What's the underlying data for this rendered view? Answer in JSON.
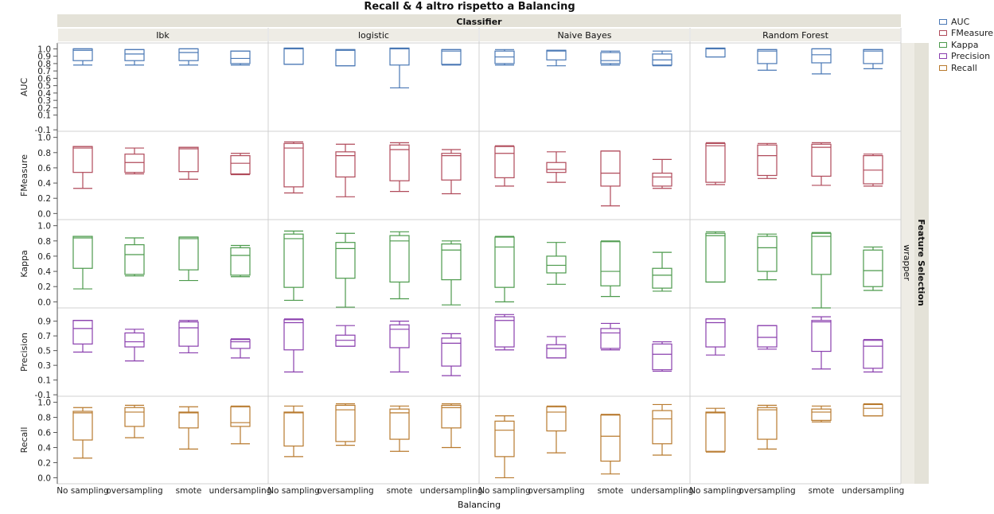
{
  "chart_data": {
    "type": "box",
    "title": "Recall & 4 altro rispetto a Balancing",
    "column_group_label": "Classifier",
    "row_group_label": "Feature Selection",
    "row_group_value": "wrapper",
    "xlabel": "Balancing",
    "classifiers": [
      "Ibk",
      "logistic",
      "Naive Bayes",
      "Random Forest"
    ],
    "categories": [
      "No sampling",
      "oversampling",
      "smote",
      "undersampling"
    ],
    "metrics": [
      {
        "name": "AUC",
        "color": "#4a78b5",
        "ticks": [
          "1.0",
          "0.9",
          "0.8",
          "0.7",
          "0.6",
          "0.5",
          "0.4",
          "0.3",
          "0.2",
          "0.1",
          "-0.1"
        ],
        "tick_values": [
          1.0,
          0.9,
          0.8,
          0.7,
          0.6,
          0.5,
          0.4,
          0.3,
          0.2,
          0.1,
          -0.1
        ],
        "ylim": [
          -0.12,
          1.08
        ]
      },
      {
        "name": "FMeasure",
        "color": "#b04a5a",
        "ticks": [
          "1.0",
          "0.8",
          "0.6",
          "0.4",
          "0.2",
          "0.0"
        ],
        "tick_values": [
          1.0,
          0.8,
          0.6,
          0.4,
          0.2,
          0.0
        ],
        "ylim": [
          -0.08,
          1.08
        ]
      },
      {
        "name": "Kappa",
        "color": "#4c9a4c",
        "ticks": [
          "1.0",
          "0.8",
          "0.6",
          "0.4",
          "0.2",
          "0.0"
        ],
        "tick_values": [
          1.0,
          0.8,
          0.6,
          0.4,
          0.2,
          0.0
        ],
        "ylim": [
          -0.08,
          1.08
        ]
      },
      {
        "name": "Precision",
        "color": "#8a3fae",
        "ticks": [
          "0.9",
          "0.7",
          "0.5",
          "0.3",
          "0.1",
          "-0.1"
        ],
        "tick_values": [
          0.9,
          0.7,
          0.5,
          0.3,
          0.1,
          -0.1
        ],
        "ylim": [
          -0.12,
          1.08
        ]
      },
      {
        "name": "Recall",
        "color": "#b87a2e",
        "ticks": [
          "1.0",
          "0.8",
          "0.6",
          "0.4",
          "0.2",
          "0.0"
        ],
        "tick_values": [
          1.0,
          0.8,
          0.6,
          0.4,
          0.2,
          0.0
        ],
        "ylim": [
          -0.08,
          1.08
        ]
      }
    ],
    "boxes": {
      "AUC": [
        [
          [
            0.78,
            0.84,
            0.98,
            1.0,
            1.0
          ],
          [
            0.78,
            0.84,
            0.93,
            0.99,
            0.99
          ],
          [
            0.78,
            0.84,
            0.95,
            1.0,
            1.0
          ],
          [
            0.78,
            0.8,
            0.87,
            0.97,
            0.97
          ]
        ],
        [
          [
            0.79,
            0.79,
            1.0,
            1.01,
            1.01
          ],
          [
            0.77,
            0.77,
            0.98,
            0.99,
            0.99
          ],
          [
            0.47,
            0.78,
            1.0,
            1.01,
            1.01
          ],
          [
            0.78,
            0.79,
            0.97,
            0.99,
            0.99
          ]
        ],
        [
          [
            0.78,
            0.8,
            0.89,
            0.97,
            0.99
          ],
          [
            0.77,
            0.85,
            0.97,
            0.98,
            0.98
          ],
          [
            0.78,
            0.8,
            0.84,
            0.95,
            0.97
          ],
          [
            0.77,
            0.78,
            0.85,
            0.93,
            0.97
          ]
        ],
        [
          [
            0.89,
            0.89,
            1.0,
            1.01,
            1.01
          ],
          [
            0.71,
            0.8,
            0.97,
            0.99,
            0.99
          ],
          [
            0.66,
            0.81,
            0.92,
            1.0,
            1.0
          ],
          [
            0.73,
            0.8,
            0.97,
            0.99,
            0.99
          ]
        ]
      ],
      "FMeasure": [
        [
          [
            0.33,
            0.54,
            0.86,
            0.88,
            0.88
          ],
          [
            0.52,
            0.54,
            0.67,
            0.78,
            0.86
          ],
          [
            0.45,
            0.55,
            0.85,
            0.87,
            0.87
          ],
          [
            0.51,
            0.52,
            0.66,
            0.76,
            0.79
          ]
        ],
        [
          [
            0.27,
            0.35,
            0.86,
            0.92,
            0.94
          ],
          [
            0.22,
            0.48,
            0.76,
            0.81,
            0.91
          ],
          [
            0.29,
            0.43,
            0.84,
            0.9,
            0.93
          ],
          [
            0.26,
            0.44,
            0.76,
            0.79,
            0.84
          ]
        ],
        [
          [
            0.36,
            0.47,
            0.79,
            0.88,
            0.89
          ],
          [
            0.41,
            0.54,
            0.58,
            0.67,
            0.81
          ],
          [
            0.1,
            0.36,
            0.53,
            0.82,
            0.82
          ],
          [
            0.33,
            0.36,
            0.48,
            0.53,
            0.71
          ]
        ],
        [
          [
            0.38,
            0.41,
            0.89,
            0.92,
            0.93
          ],
          [
            0.46,
            0.5,
            0.76,
            0.9,
            0.92
          ],
          [
            0.37,
            0.49,
            0.87,
            0.91,
            0.93
          ],
          [
            0.36,
            0.39,
            0.57,
            0.76,
            0.78
          ]
        ]
      ],
      "Kappa": [
        [
          [
            0.17,
            0.44,
            0.84,
            0.86,
            0.86
          ],
          [
            0.34,
            0.36,
            0.62,
            0.75,
            0.84
          ],
          [
            0.28,
            0.42,
            0.83,
            0.85,
            0.85
          ],
          [
            0.33,
            0.35,
            0.61,
            0.71,
            0.74
          ]
        ],
        [
          [
            0.02,
            0.19,
            0.83,
            0.89,
            0.93
          ],
          [
            -0.07,
            0.31,
            0.7,
            0.78,
            0.9
          ],
          [
            0.04,
            0.26,
            0.8,
            0.87,
            0.92
          ],
          [
            -0.04,
            0.29,
            0.68,
            0.76,
            0.8
          ]
        ],
        [
          [
            0.0,
            0.19,
            0.72,
            0.85,
            0.86
          ],
          [
            0.23,
            0.38,
            0.48,
            0.6,
            0.78
          ],
          [
            0.07,
            0.21,
            0.4,
            0.79,
            0.8
          ],
          [
            0.14,
            0.18,
            0.35,
            0.44,
            0.65
          ]
        ],
        [
          [
            0.26,
            0.26,
            0.87,
            0.9,
            0.92
          ],
          [
            0.29,
            0.4,
            0.71,
            0.86,
            0.89
          ],
          [
            -0.08,
            0.36,
            0.86,
            0.9,
            0.91
          ],
          [
            0.15,
            0.2,
            0.41,
            0.68,
            0.72
          ]
        ]
      ],
      "Precision": [
        [
          [
            0.48,
            0.59,
            0.8,
            0.91,
            0.91
          ],
          [
            0.36,
            0.55,
            0.62,
            0.74,
            0.79
          ],
          [
            0.47,
            0.56,
            0.81,
            0.89,
            0.91
          ],
          [
            0.4,
            0.53,
            0.62,
            0.65,
            0.66
          ]
        ],
        [
          [
            0.21,
            0.51,
            0.88,
            0.92,
            0.93
          ],
          [
            0.56,
            0.56,
            0.64,
            0.71,
            0.84
          ],
          [
            0.21,
            0.54,
            0.79,
            0.85,
            0.9
          ],
          [
            0.16,
            0.29,
            0.6,
            0.67,
            0.73
          ]
        ],
        [
          [
            0.51,
            0.55,
            0.91,
            0.96,
            0.99
          ],
          [
            0.4,
            0.4,
            0.53,
            0.58,
            0.69
          ],
          [
            0.51,
            0.53,
            0.74,
            0.8,
            0.87
          ],
          [
            0.22,
            0.24,
            0.45,
            0.59,
            0.62
          ]
        ],
        [
          [
            0.44,
            0.55,
            0.88,
            0.93,
            0.93
          ],
          [
            0.52,
            0.55,
            0.68,
            0.84,
            0.84
          ],
          [
            0.25,
            0.49,
            0.89,
            0.91,
            0.96
          ],
          [
            0.21,
            0.26,
            0.56,
            0.64,
            0.65
          ]
        ]
      ],
      "Recall": [
        [
          [
            0.26,
            0.5,
            0.86,
            0.88,
            0.93
          ],
          [
            0.53,
            0.68,
            0.87,
            0.93,
            0.96
          ],
          [
            0.38,
            0.66,
            0.86,
            0.87,
            0.94
          ],
          [
            0.45,
            0.68,
            0.73,
            0.94,
            0.95
          ]
        ],
        [
          [
            0.28,
            0.42,
            0.86,
            0.87,
            0.95
          ],
          [
            0.43,
            0.48,
            0.9,
            0.96,
            0.98
          ],
          [
            0.35,
            0.51,
            0.86,
            0.91,
            0.95
          ],
          [
            0.4,
            0.66,
            0.93,
            0.96,
            0.98
          ]
        ],
        [
          [
            0.0,
            0.28,
            0.63,
            0.75,
            0.82
          ],
          [
            0.33,
            0.62,
            0.87,
            0.94,
            0.95
          ],
          [
            0.05,
            0.22,
            0.55,
            0.83,
            0.84
          ],
          [
            0.3,
            0.45,
            0.78,
            0.89,
            0.97
          ]
        ],
        [
          [
            0.34,
            0.35,
            0.86,
            0.87,
            0.92
          ],
          [
            0.38,
            0.51,
            0.9,
            0.93,
            0.96
          ],
          [
            0.74,
            0.76,
            0.87,
            0.91,
            0.95
          ],
          [
            0.82,
            0.82,
            0.92,
            0.97,
            0.98
          ]
        ]
      ]
    },
    "legend": {
      "placement": "top-right",
      "entries": [
        "AUC",
        "FMeasure",
        "Kappa",
        "Precision",
        "Recall"
      ]
    },
    "grid": false
  }
}
